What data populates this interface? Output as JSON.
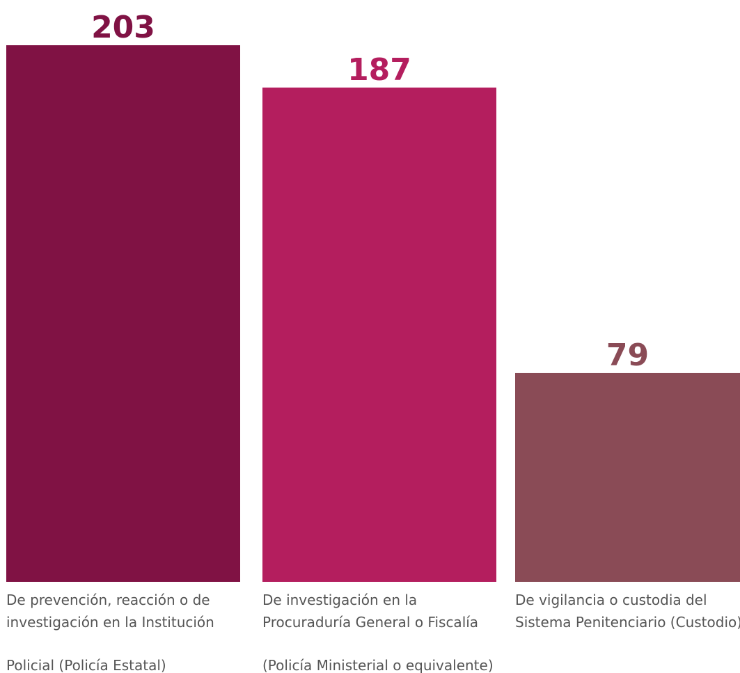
{
  "chart_data": {
    "type": "bar",
    "title": "",
    "xlabel": "",
    "ylabel": "",
    "ylim": [
      0,
      203
    ],
    "grid": false,
    "legend": "none",
    "categories": [
      [
        "De prevención, reacción o de",
        "investigación en la Institución",
        "Policial (Policía Estatal)"
      ],
      [
        "De investigación en la",
        "Procuraduría General o Fiscalía",
        "(Policía Ministerial o equivalente)"
      ],
      [
        "De vigilancia o custodia del",
        "Sistema Penitenciario (Custodio)"
      ]
    ],
    "values": [
      203,
      187,
      79
    ],
    "colors": [
      "#801244",
      "#b41e5e",
      "#8a4b56"
    ]
  }
}
